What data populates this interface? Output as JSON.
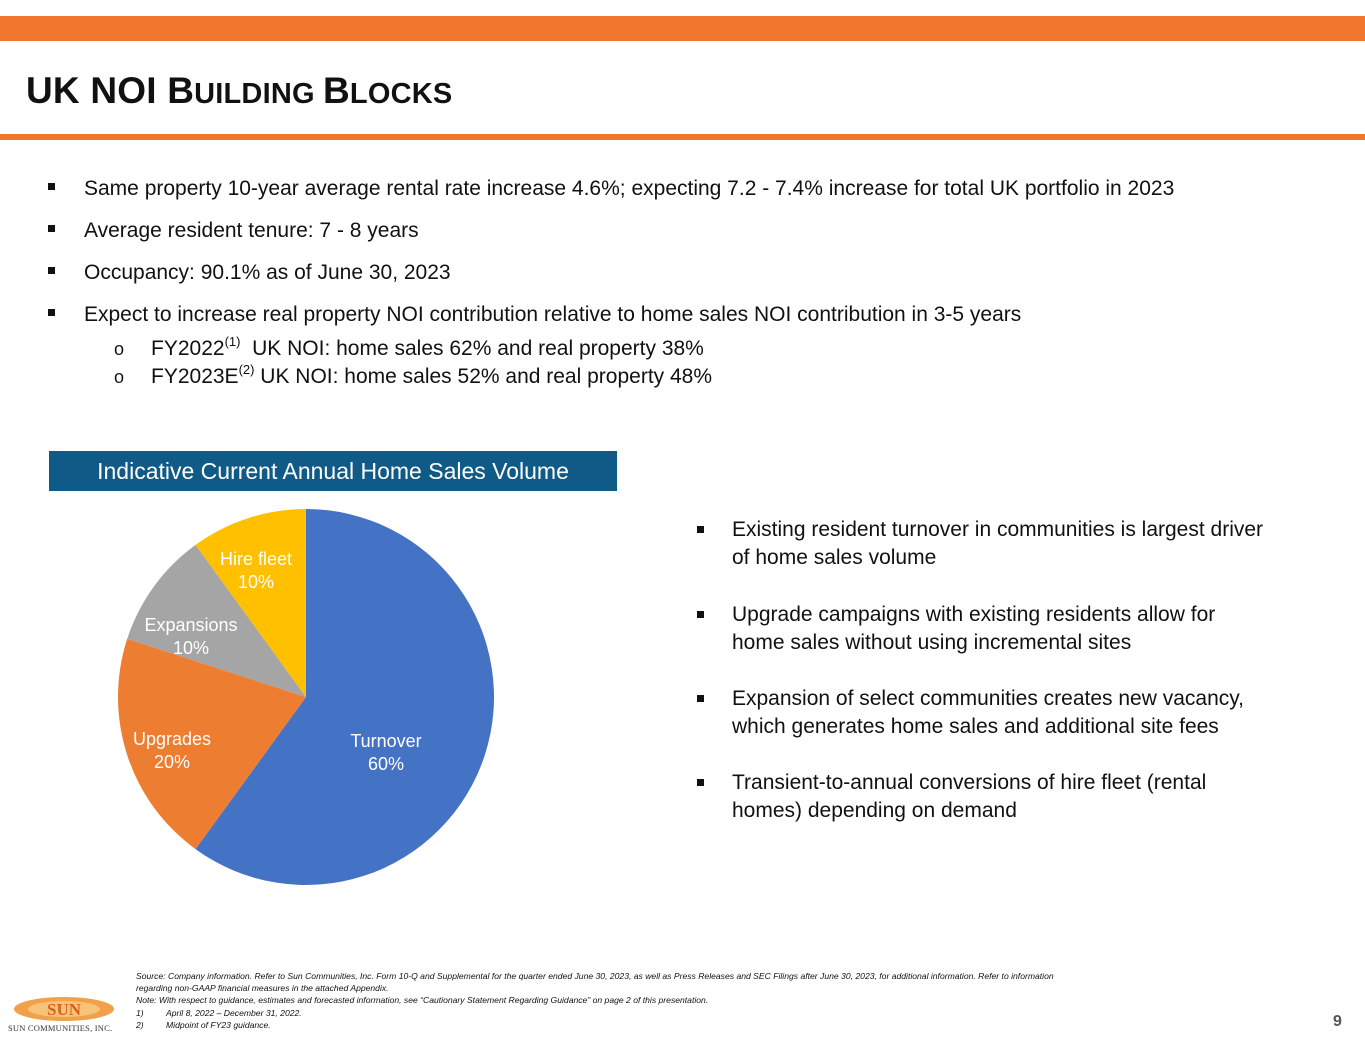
{
  "colors": {
    "accent": "#F2762E",
    "header_blue": "#0F5A86",
    "turnover": "#4472C4",
    "upgrades": "#ED7D31",
    "expansions": "#A5A5A5",
    "hire_fleet": "#FFC000"
  },
  "slide": {
    "title_parts": [
      "UK NOI ",
      "B",
      "UILDING ",
      "B",
      "LOCKS"
    ],
    "bullets": [
      "Same property 10-year average rental rate increase 4.6%; expecting 7.2 - 7.4% increase for total UK portfolio in 2023",
      "Average resident tenure: 7 - 8 years",
      "Occupancy: 90.1%  as of June 30, 2023",
      "Expect to increase real property NOI contribution relative to home sales NOI contribution in 3-5 years"
    ],
    "sub_bullets": [
      {
        "marker": "o",
        "label": "FY2022",
        "note": "(1)",
        "text": "  UK NOI: home sales 62% and real property 38%"
      },
      {
        "marker": "o",
        "label": "FY2023E",
        "note": "(2)",
        "text": " UK NOI: home sales 52% and real property 48%"
      }
    ],
    "right_bullets": [
      [
        "Existing resident turnover in communities is largest driver",
        "of home sales volume"
      ],
      [
        "Upgrade campaigns with existing residents allow for",
        "home sales without using incremental sites"
      ],
      [
        "Expansion of select communities creates new vacancy,",
        "which generates home sales and additional site fees"
      ],
      [
        "Transient-to-annual conversions of hire fleet (rental",
        "homes) depending on demand"
      ]
    ],
    "footnotes": [
      "Source: Company information. Refer to Sun Communities, Inc. Form 10-Q and Supplemental for the quarter ended June 30, 2023, as well as Press Releases and SEC Filings after June 30, 2023, for additional information. Refer to information",
      "regarding non-GAAP financial measures in the attached Appendix.",
      "Note: With respect to guidance, estimates and forecasted information, see “Cautionary Statement Regarding Guidance” on page 2 of this presentation."
    ],
    "numbered_notes": [
      {
        "num": "1)",
        "text": "April 8, 2022 – December 31, 2022."
      },
      {
        "num": "2)",
        "text": "Midpoint of FY23 guidance."
      }
    ],
    "logo": {
      "mark": "SUN",
      "company": "SUN COMMUNITIES, INC."
    },
    "page_number": "9"
  },
  "chart_data": {
    "type": "pie",
    "title": "Indicative Current Annual Home Sales Volume",
    "start_angle": "12 o'clock, clockwise",
    "slices": [
      {
        "label": "Turnover",
        "value": 60,
        "value_label": "60%",
        "color": "#4472C4"
      },
      {
        "label": "Upgrades",
        "value": 20,
        "value_label": "20%",
        "color": "#ED7D31"
      },
      {
        "label": "Expansions",
        "value": 10,
        "value_label": "10%",
        "color": "#A5A5A5"
      },
      {
        "label": "Hire fleet",
        "value": 10,
        "value_label": "10%",
        "color": "#FFC000"
      }
    ]
  }
}
